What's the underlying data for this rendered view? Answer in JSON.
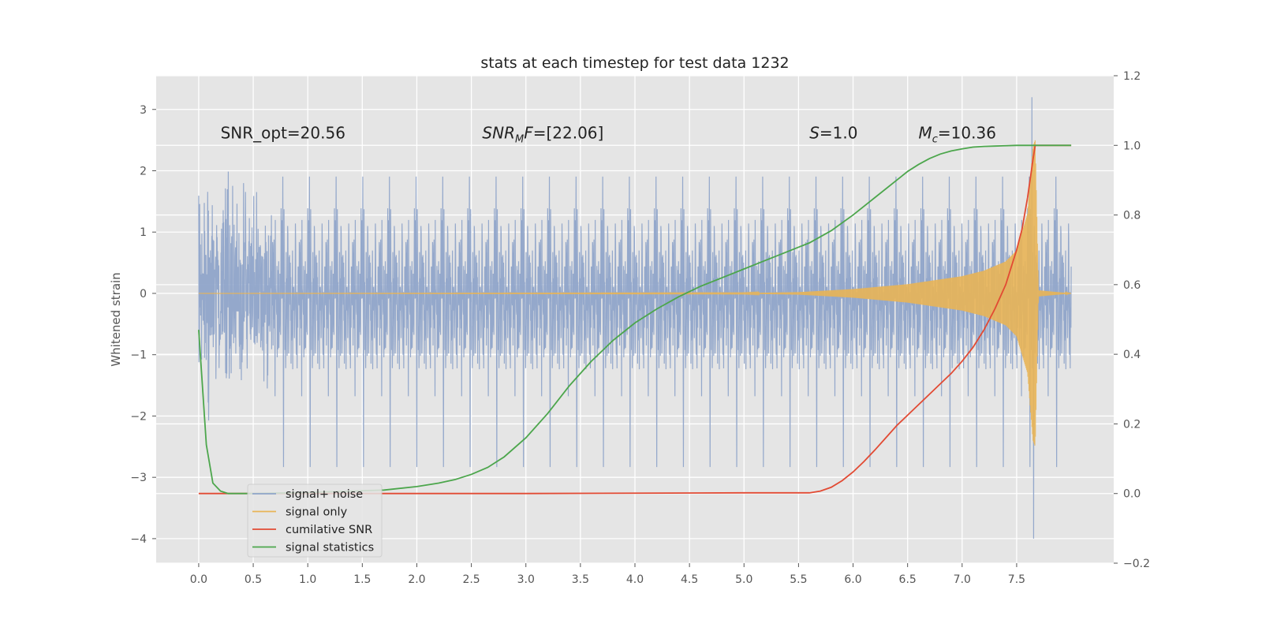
{
  "chart_data": {
    "type": "line",
    "title": "stats at each timestep for test data 1232",
    "xlabel": "",
    "ylabel": "Whitened strain",
    "y2label": "",
    "xlim": [
      -0.39,
      8.39
    ],
    "ylim": [
      -4.4,
      3.55
    ],
    "y2lim": [
      -0.2,
      1.2
    ],
    "x_ticks": [
      0.0,
      0.5,
      1.0,
      1.5,
      2.0,
      2.5,
      3.0,
      3.5,
      4.0,
      4.5,
      5.0,
      5.5,
      6.0,
      6.5,
      7.0,
      7.5
    ],
    "x_tick_labels": [
      "0.0",
      "0.5",
      "1.0",
      "1.5",
      "2.0",
      "2.5",
      "3.0",
      "3.5",
      "4.0",
      "4.5",
      "5.0",
      "5.5",
      "6.0",
      "6.5",
      "7.0",
      "7.5"
    ],
    "y_ticks": [
      -4,
      -3,
      -2,
      -1,
      0,
      1,
      2,
      3
    ],
    "y_tick_labels": [
      "−4",
      "−3",
      "−2",
      "−1",
      "0",
      "1",
      "2",
      "3"
    ],
    "y2_ticks": [
      -0.2,
      0.0,
      0.2,
      0.4,
      0.6,
      0.8,
      1.0,
      1.2
    ],
    "y2_tick_labels": [
      "−0.2",
      "0.0",
      "0.2",
      "0.4",
      "0.6",
      "0.8",
      "1.0",
      "1.2"
    ],
    "grid": true,
    "legend_position": "lower-left",
    "annotations": [
      {
        "text": "SNR_opt=20.56",
        "x": 0.2,
        "y": 2.5
      },
      {
        "text": "SNR_MF=[22.06]",
        "x": 2.6,
        "y": 2.5
      },
      {
        "text": "S=1.0",
        "x": 5.6,
        "y": 2.5
      },
      {
        "text": "M_c=10.36",
        "x": 6.6,
        "y": 2.5
      }
    ],
    "series": [
      {
        "name": "signal+ noise",
        "axis": "left",
        "color": "#8fa4c9",
        "kind": "noise-band",
        "x_range": [
          0.0,
          8.0
        ],
        "typical_amplitude": 1.3,
        "peak_max": 3.2,
        "peak_min": -4.0
      },
      {
        "name": "signal only",
        "axis": "left",
        "color": "#e8b456",
        "kind": "chirp-envelope",
        "x": [
          0.0,
          5.0,
          5.5,
          6.0,
          6.5,
          7.0,
          7.2,
          7.4,
          7.5,
          7.6,
          7.65,
          7.67,
          7.7,
          8.0
        ],
        "envelope": [
          0.0,
          0.005,
          0.02,
          0.07,
          0.15,
          0.28,
          0.37,
          0.52,
          0.7,
          1.3,
          2.4,
          2.5,
          0.05,
          0.0
        ]
      },
      {
        "name": "cumilative SNR",
        "axis": "right",
        "color": "#e24a33",
        "x": [
          0.0,
          1.0,
          2.0,
          3.0,
          4.0,
          5.0,
          5.6,
          5.7,
          5.8,
          5.9,
          6.0,
          6.1,
          6.2,
          6.3,
          6.4,
          6.5,
          6.6,
          6.7,
          6.8,
          6.9,
          7.0,
          7.1,
          7.2,
          7.3,
          7.4,
          7.5,
          7.55,
          7.6,
          7.65,
          7.67,
          8.0
        ],
        "y": [
          0.0,
          0.0,
          0.0,
          0.0,
          0.001,
          0.002,
          0.002,
          0.007,
          0.018,
          0.037,
          0.062,
          0.092,
          0.125,
          0.16,
          0.195,
          0.225,
          0.255,
          0.285,
          0.315,
          0.345,
          0.38,
          0.42,
          0.47,
          0.53,
          0.6,
          0.7,
          0.76,
          0.85,
          0.96,
          1.0,
          1.0
        ]
      },
      {
        "name": "signal statistics",
        "axis": "right",
        "color": "#4ca64c",
        "x": [
          0.0,
          0.07,
          0.13,
          0.2,
          0.27,
          0.5,
          1.0,
          1.5,
          1.7,
          2.0,
          2.2,
          2.35,
          2.5,
          2.65,
          2.8,
          3.0,
          3.2,
          3.4,
          3.6,
          3.8,
          4.0,
          4.2,
          4.4,
          4.6,
          4.8,
          5.0,
          5.2,
          5.4,
          5.6,
          5.8,
          6.0,
          6.2,
          6.4,
          6.5,
          6.6,
          6.7,
          6.8,
          6.9,
          7.0,
          7.1,
          7.2,
          7.3,
          7.4,
          7.5,
          7.6,
          8.0
        ],
        "y": [
          0.47,
          0.14,
          0.03,
          0.007,
          0.0,
          0.0,
          0.003,
          0.008,
          0.01,
          0.02,
          0.03,
          0.04,
          0.055,
          0.075,
          0.105,
          0.16,
          0.23,
          0.31,
          0.38,
          0.44,
          0.49,
          0.53,
          0.565,
          0.595,
          0.62,
          0.645,
          0.67,
          0.695,
          0.72,
          0.755,
          0.8,
          0.85,
          0.9,
          0.925,
          0.945,
          0.962,
          0.975,
          0.984,
          0.99,
          0.995,
          0.997,
          0.998,
          0.999,
          1.0,
          1.0,
          1.0
        ]
      }
    ]
  }
}
